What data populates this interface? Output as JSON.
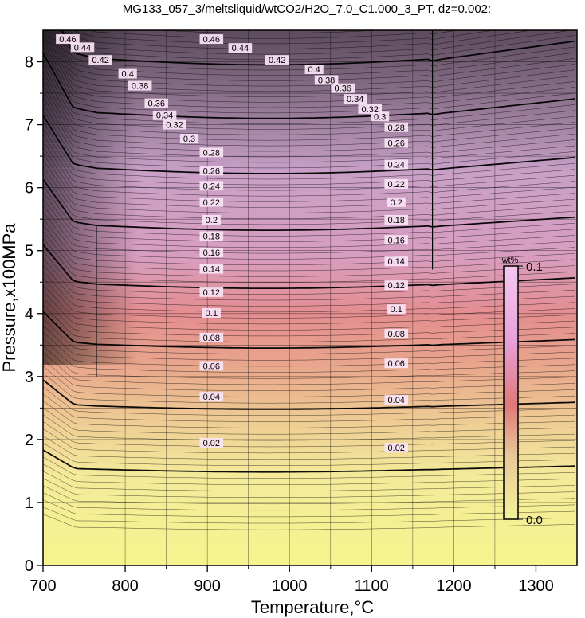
{
  "title": "MG133_057_3/meltsliquid/wtCO2/H2O_7.0_C1.000_3_PT, dz=0.002:",
  "chart_data": {
    "type": "heatmap",
    "title": "MG133_057_3/meltsliquid/wtCO2/H2O_7.0_C1.000_3_PT, dz=0.002:",
    "xlabel": "Temperature,°C",
    "ylabel": "Pressure,x100MPa",
    "xlim": [
      700,
      1350
    ],
    "ylim": [
      0,
      8.5
    ],
    "x_ticks": [
      "700",
      "800",
      "900",
      "1000",
      "1100",
      "1200",
      "1300"
    ],
    "y_ticks": [
      "0",
      "1",
      "2",
      "3",
      "4",
      "5",
      "6",
      "7",
      "8"
    ],
    "grid": true,
    "contour_interval": 0.002,
    "colorbar": {
      "unit": "wt%",
      "min_label": "0.0",
      "max_label": "0.1",
      "range": [
        0.0,
        0.1
      ],
      "colors": [
        "#f2f29a",
        "#e8b090",
        "#e07878",
        "#e8a0d8",
        "#f4c8f0"
      ]
    },
    "contour_labels": [
      {
        "text": "0.02",
        "x": 905,
        "y": 1.95
      },
      {
        "text": "0.02",
        "x": 1130,
        "y": 1.87
      },
      {
        "text": "0.04",
        "x": 905,
        "y": 2.68
      },
      {
        "text": "0.04",
        "x": 1130,
        "y": 2.63
      },
      {
        "text": "0.06",
        "x": 905,
        "y": 3.17
      },
      {
        "text": "0.06",
        "x": 1130,
        "y": 3.21
      },
      {
        "text": "0.08",
        "x": 905,
        "y": 3.62
      },
      {
        "text": "0.08",
        "x": 1130,
        "y": 3.68
      },
      {
        "text": "0.1",
        "x": 905,
        "y": 4.01
      },
      {
        "text": "0.1",
        "x": 1130,
        "y": 4.07
      },
      {
        "text": "0.12",
        "x": 905,
        "y": 4.34
      },
      {
        "text": "0.12",
        "x": 1130,
        "y": 4.45
      },
      {
        "text": "0.14",
        "x": 905,
        "y": 4.71
      },
      {
        "text": "0.14",
        "x": 1130,
        "y": 4.83
      },
      {
        "text": "0.16",
        "x": 905,
        "y": 4.97
      },
      {
        "text": "0.16",
        "x": 1130,
        "y": 5.17
      },
      {
        "text": "0.18",
        "x": 905,
        "y": 5.23
      },
      {
        "text": "0.18",
        "x": 1130,
        "y": 5.49
      },
      {
        "text": "0.2",
        "x": 905,
        "y": 5.49
      },
      {
        "text": "0.2",
        "x": 1130,
        "y": 5.77
      },
      {
        "text": "0.22",
        "x": 905,
        "y": 5.77
      },
      {
        "text": "0.22",
        "x": 1130,
        "y": 6.06
      },
      {
        "text": "0.24",
        "x": 905,
        "y": 6.03
      },
      {
        "text": "0.24",
        "x": 1130,
        "y": 6.37
      },
      {
        "text": "0.26",
        "x": 905,
        "y": 6.27
      },
      {
        "text": "0.26",
        "x": 1130,
        "y": 6.71
      },
      {
        "text": "0.28",
        "x": 905,
        "y": 6.56
      },
      {
        "text": "0.28",
        "x": 1130,
        "y": 6.96
      },
      {
        "text": "0.3",
        "x": 878,
        "y": 6.78
      },
      {
        "text": "0.3",
        "x": 1110,
        "y": 7.13
      },
      {
        "text": "0.32",
        "x": 860,
        "y": 7.0
      },
      {
        "text": "0.32",
        "x": 1098,
        "y": 7.25
      },
      {
        "text": "0.34",
        "x": 848,
        "y": 7.15
      },
      {
        "text": "0.34",
        "x": 1080,
        "y": 7.41
      },
      {
        "text": "0.36",
        "x": 838,
        "y": 7.34
      },
      {
        "text": "0.36",
        "x": 1065,
        "y": 7.58
      },
      {
        "text": "0.38",
        "x": 818,
        "y": 7.62
      },
      {
        "text": "0.38",
        "x": 1045,
        "y": 7.71
      },
      {
        "text": "0.4",
        "x": 803,
        "y": 7.81
      },
      {
        "text": "0.4",
        "x": 1030,
        "y": 7.88
      },
      {
        "text": "0.42",
        "x": 770,
        "y": 8.03
      },
      {
        "text": "0.42",
        "x": 985,
        "y": 8.03
      },
      {
        "text": "0.44",
        "x": 748,
        "y": 8.23
      },
      {
        "text": "0.44",
        "x": 940,
        "y": 8.22
      },
      {
        "text": "0.46",
        "x": 730,
        "y": 8.36
      },
      {
        "text": "0.46",
        "x": 905,
        "y": 8.36
      }
    ]
  }
}
